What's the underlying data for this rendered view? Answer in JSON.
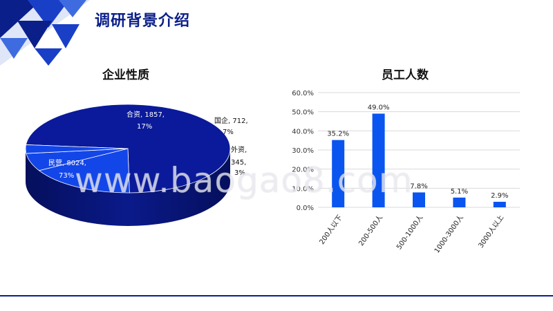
{
  "slide": {
    "title": "调研背景介绍",
    "watermark": "www.baogao8.com"
  },
  "colors": {
    "primary": "#0b1f8a",
    "pie_main": "#0a1a9a",
    "pie_secondary": "#1346e8",
    "bar": "#0a55f0"
  },
  "chart_data": [
    {
      "type": "pie",
      "title": "企业性质",
      "slices": [
        {
          "label": "民营",
          "value": 8024,
          "percent": "73%"
        },
        {
          "label": "合资",
          "value": 1857,
          "percent": "17%"
        },
        {
          "label": "国企",
          "value": 712,
          "percent": "7%"
        },
        {
          "label": "外资",
          "value": 345,
          "percent": "3%"
        }
      ],
      "slice_labels": [
        {
          "line1": "民营, 8024,",
          "line2": "73%"
        },
        {
          "line1": "合资, 1857,",
          "line2": "17%"
        },
        {
          "line1": "国企, 712,",
          "line2": "7%"
        },
        {
          "line1": "外资,",
          "line2": "345,",
          "line3": "3%"
        }
      ]
    },
    {
      "type": "bar",
      "title": "员工人数",
      "categories": [
        "200人以下",
        "200-500人",
        "500-1000人",
        "1000-3000人",
        "3000人以上"
      ],
      "values": [
        35.2,
        49.0,
        7.8,
        5.1,
        2.9
      ],
      "value_labels": [
        "35.2%",
        "49.0%",
        "7.8%",
        "5.1%",
        "2.9%"
      ],
      "yticks": [
        "0.0%",
        "10.0%",
        "20.0%",
        "30.0%",
        "40.0%",
        "50.0%",
        "60.0%"
      ],
      "ylim": [
        0,
        60
      ],
      "grid": true
    }
  ]
}
